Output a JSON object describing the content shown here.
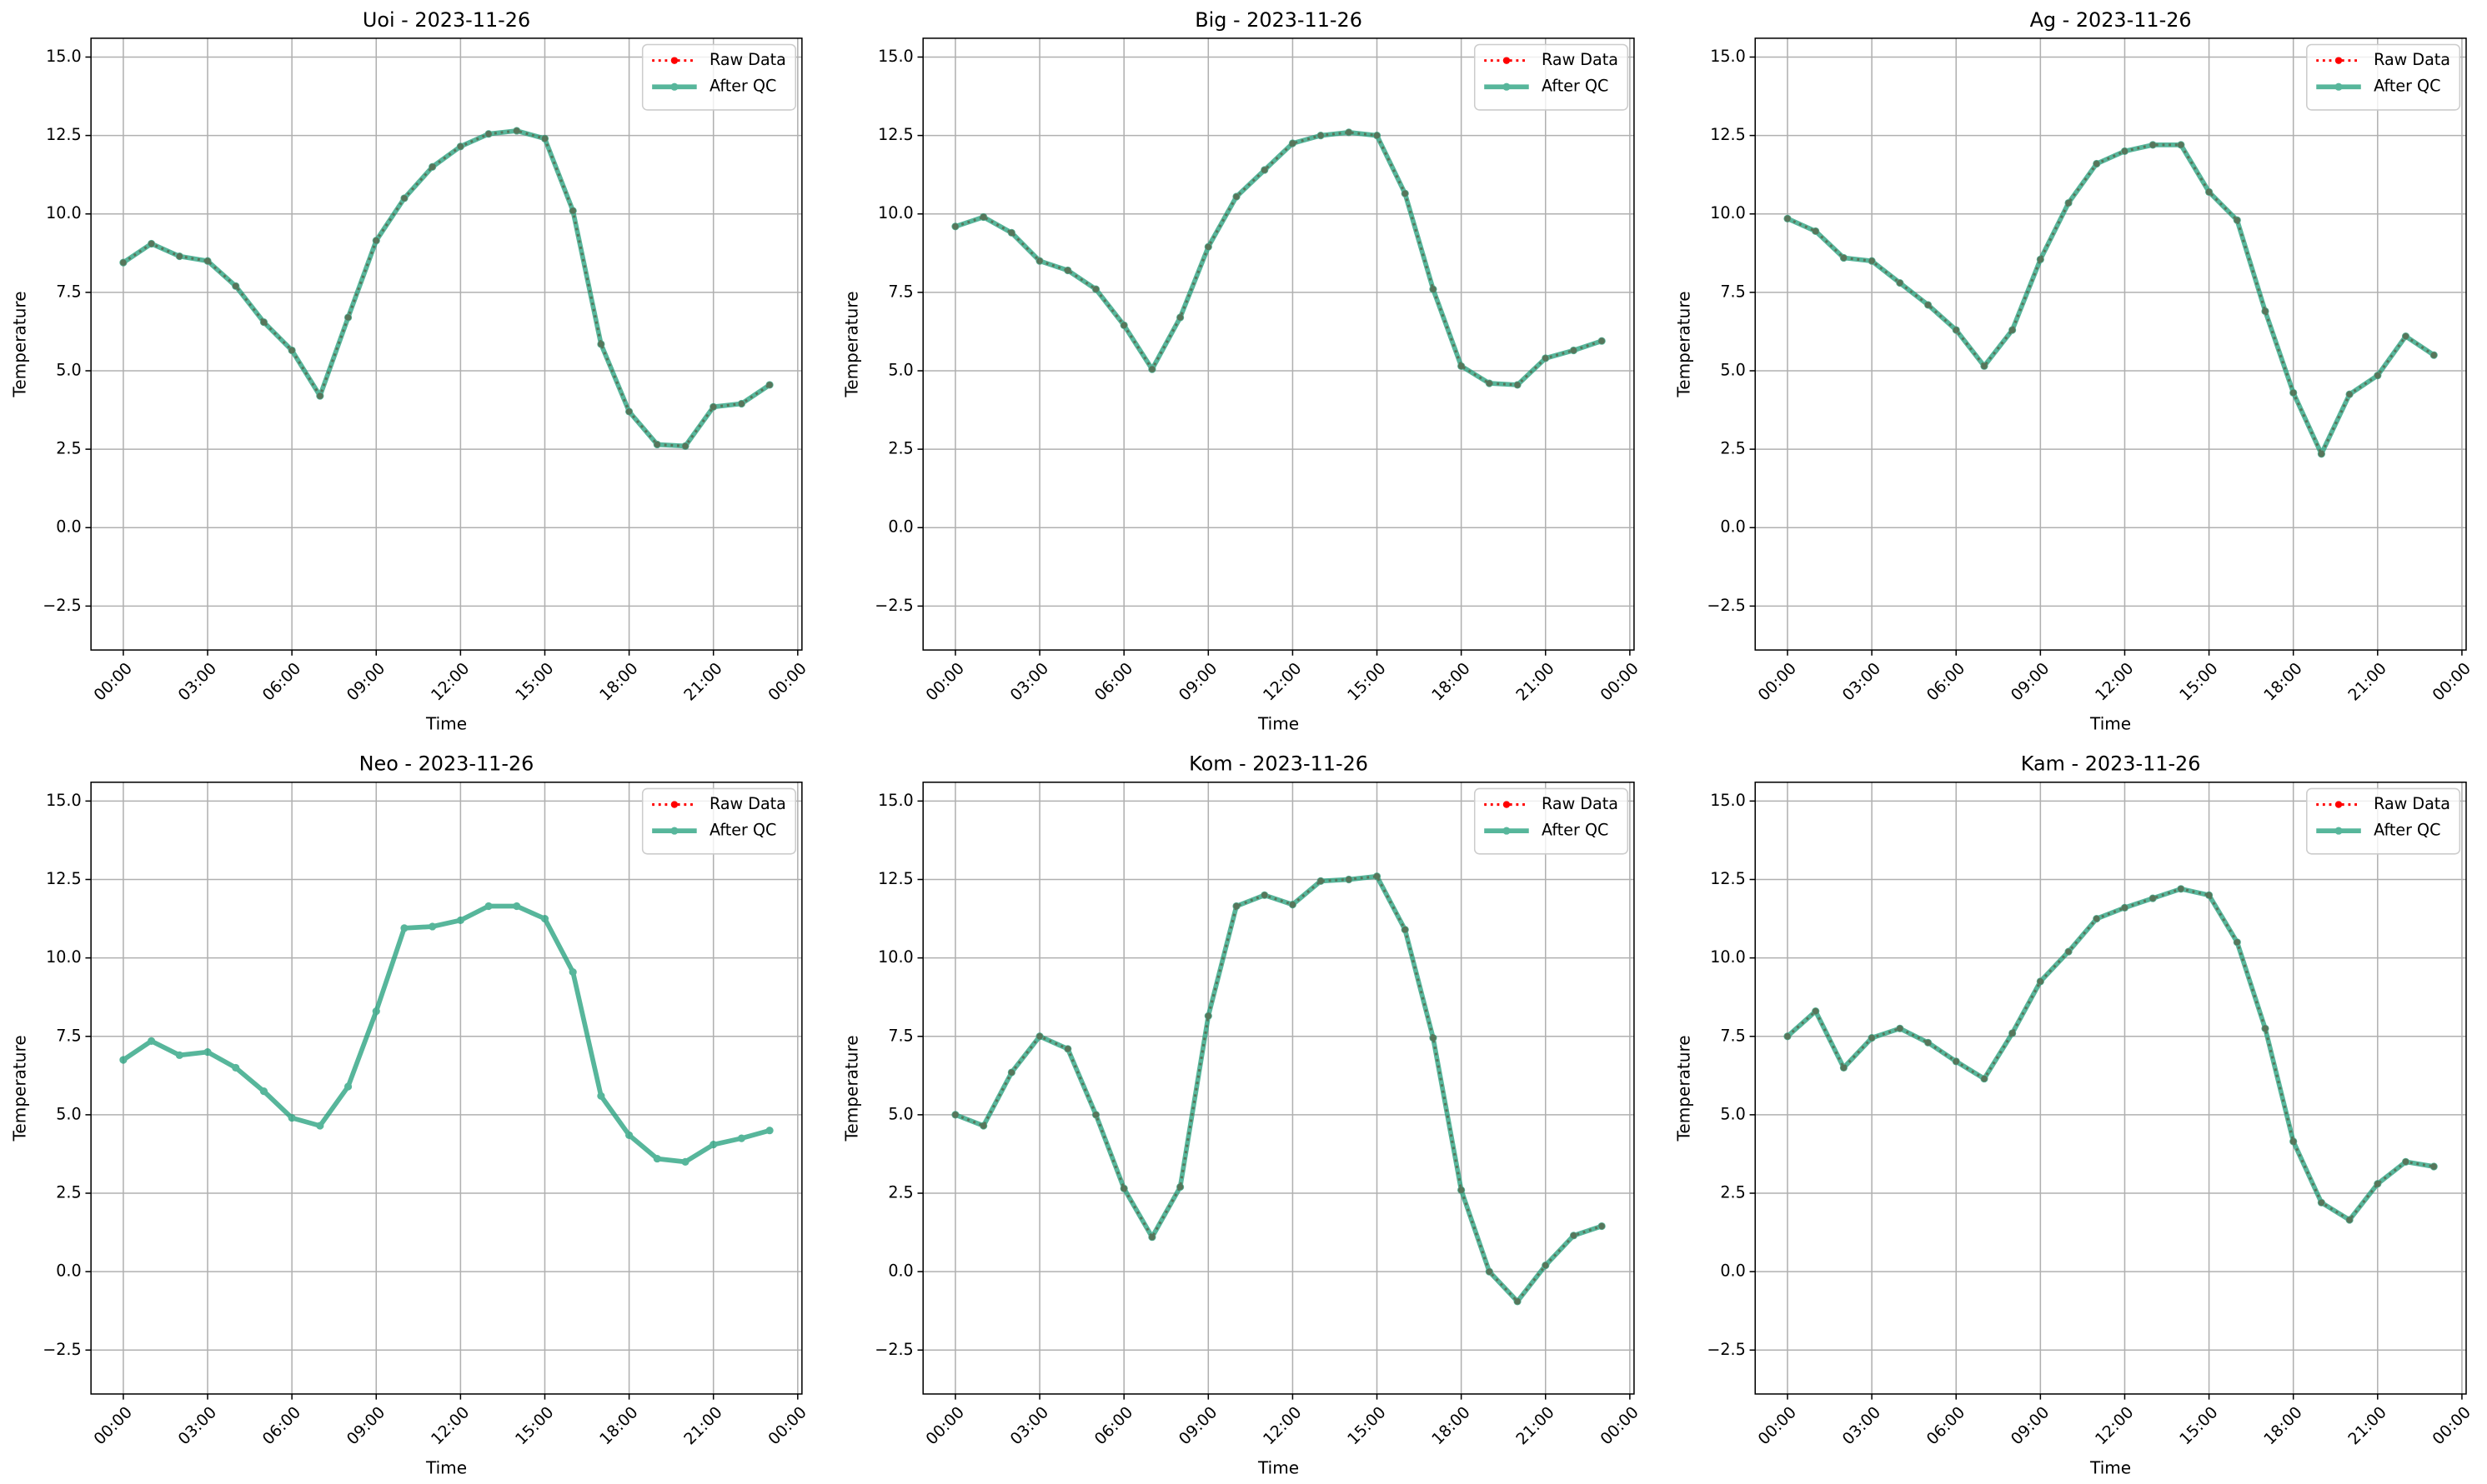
{
  "chart_data": [
    {
      "type": "line",
      "title": "Uoi - 2023-11-26",
      "xlabel": "Time",
      "ylabel": "Temperature",
      "x": [
        "00:00",
        "01:00",
        "02:00",
        "03:00",
        "04:00",
        "05:00",
        "06:00",
        "07:00",
        "08:00",
        "09:00",
        "10:00",
        "11:00",
        "12:00",
        "13:00",
        "14:00",
        "15:00",
        "16:00",
        "17:00",
        "18:00",
        "19:00",
        "20:00",
        "21:00",
        "22:00",
        "23:00"
      ],
      "xlim": [
        -1.15,
        24.15
      ],
      "xticks": [
        {
          "value": 0,
          "label": "00:00"
        },
        {
          "value": 3,
          "label": "03:00"
        },
        {
          "value": 6,
          "label": "06:00"
        },
        {
          "value": 9,
          "label": "09:00"
        },
        {
          "value": 12,
          "label": "12:00"
        },
        {
          "value": 15,
          "label": "15:00"
        },
        {
          "value": 18,
          "label": "18:00"
        },
        {
          "value": 21,
          "label": "21:00"
        },
        {
          "value": 24,
          "label": "00:00"
        }
      ],
      "ylim": [
        -3.9,
        15.6
      ],
      "yticks": [
        {
          "value": -2.5,
          "label": "−2.5"
        },
        {
          "value": 0,
          "label": "0.0"
        },
        {
          "value": 2.5,
          "label": "2.5"
        },
        {
          "value": 5,
          "label": "5.0"
        },
        {
          "value": 7.5,
          "label": "7.5"
        },
        {
          "value": 10,
          "label": "10.0"
        },
        {
          "value": 12.5,
          "label": "12.5"
        },
        {
          "value": 15,
          "label": "15.0"
        }
      ],
      "grid": true,
      "legend": "upper right",
      "series": [
        {
          "name": "Raw Data",
          "color": "#ff0000",
          "values": [
            8.45,
            9.05,
            8.65,
            8.5,
            7.7,
            6.55,
            5.65,
            4.2,
            6.7,
            9.15,
            10.5,
            11.5,
            12.15,
            12.55,
            12.65,
            12.4,
            10.1,
            5.85,
            3.7,
            2.65,
            2.6,
            3.85,
            3.95,
            4.55
          ]
        },
        {
          "name": "After QC",
          "color": "#1f9e7a",
          "values": [
            8.45,
            9.05,
            8.65,
            8.5,
            7.7,
            6.55,
            5.65,
            4.2,
            6.7,
            9.15,
            10.5,
            11.5,
            12.15,
            12.55,
            12.65,
            12.4,
            10.1,
            5.85,
            3.7,
            2.65,
            2.6,
            3.85,
            3.95,
            4.55
          ]
        }
      ]
    },
    {
      "type": "line",
      "title": "Big - 2023-11-26",
      "xlabel": "Time",
      "ylabel": "Temperature",
      "x": [
        "00:00",
        "01:00",
        "02:00",
        "03:00",
        "04:00",
        "05:00",
        "06:00",
        "07:00",
        "08:00",
        "09:00",
        "10:00",
        "11:00",
        "12:00",
        "13:00",
        "14:00",
        "15:00",
        "16:00",
        "17:00",
        "18:00",
        "19:00",
        "20:00",
        "21:00",
        "22:00",
        "23:00"
      ],
      "xlim": [
        -1.15,
        24.15
      ],
      "xticks": [
        {
          "value": 0,
          "label": "00:00"
        },
        {
          "value": 3,
          "label": "03:00"
        },
        {
          "value": 6,
          "label": "06:00"
        },
        {
          "value": 9,
          "label": "09:00"
        },
        {
          "value": 12,
          "label": "12:00"
        },
        {
          "value": 15,
          "label": "15:00"
        },
        {
          "value": 18,
          "label": "18:00"
        },
        {
          "value": 21,
          "label": "21:00"
        },
        {
          "value": 24,
          "label": "00:00"
        }
      ],
      "ylim": [
        -3.9,
        15.6
      ],
      "yticks": [
        {
          "value": -2.5,
          "label": "−2.5"
        },
        {
          "value": 0,
          "label": "0.0"
        },
        {
          "value": 2.5,
          "label": "2.5"
        },
        {
          "value": 5,
          "label": "5.0"
        },
        {
          "value": 7.5,
          "label": "7.5"
        },
        {
          "value": 10,
          "label": "10.0"
        },
        {
          "value": 12.5,
          "label": "12.5"
        },
        {
          "value": 15,
          "label": "15.0"
        }
      ],
      "grid": true,
      "legend": "upper right",
      "series": [
        {
          "name": "Raw Data",
          "color": "#ff0000",
          "values": [
            9.6,
            9.9,
            9.4,
            8.5,
            8.2,
            7.6,
            6.45,
            5.05,
            6.7,
            8.95,
            10.55,
            11.4,
            12.25,
            12.5,
            12.6,
            12.5,
            10.65,
            7.6,
            5.15,
            4.6,
            4.55,
            5.4,
            5.65,
            5.95
          ]
        },
        {
          "name": "After QC",
          "color": "#1f9e7a",
          "values": [
            9.6,
            9.9,
            9.4,
            8.5,
            8.2,
            7.6,
            6.45,
            5.05,
            6.7,
            8.95,
            10.55,
            11.4,
            12.25,
            12.5,
            12.6,
            12.5,
            10.65,
            7.6,
            5.15,
            4.6,
            4.55,
            5.4,
            5.65,
            5.95
          ]
        }
      ]
    },
    {
      "type": "line",
      "title": "Ag - 2023-11-26",
      "xlabel": "Time",
      "ylabel": "Temperature",
      "x": [
        "00:00",
        "01:00",
        "02:00",
        "03:00",
        "04:00",
        "05:00",
        "06:00",
        "07:00",
        "08:00",
        "09:00",
        "10:00",
        "11:00",
        "12:00",
        "13:00",
        "14:00",
        "15:00",
        "16:00",
        "17:00",
        "18:00",
        "19:00",
        "20:00",
        "21:00",
        "22:00",
        "23:00"
      ],
      "xlim": [
        -1.15,
        24.15
      ],
      "xticks": [
        {
          "value": 0,
          "label": "00:00"
        },
        {
          "value": 3,
          "label": "03:00"
        },
        {
          "value": 6,
          "label": "06:00"
        },
        {
          "value": 9,
          "label": "09:00"
        },
        {
          "value": 12,
          "label": "12:00"
        },
        {
          "value": 15,
          "label": "15:00"
        },
        {
          "value": 18,
          "label": "18:00"
        },
        {
          "value": 21,
          "label": "21:00"
        },
        {
          "value": 24,
          "label": "00:00"
        }
      ],
      "ylim": [
        -3.9,
        15.6
      ],
      "yticks": [
        {
          "value": -2.5,
          "label": "−2.5"
        },
        {
          "value": 0,
          "label": "0.0"
        },
        {
          "value": 2.5,
          "label": "2.5"
        },
        {
          "value": 5,
          "label": "5.0"
        },
        {
          "value": 7.5,
          "label": "7.5"
        },
        {
          "value": 10,
          "label": "10.0"
        },
        {
          "value": 12.5,
          "label": "12.5"
        },
        {
          "value": 15,
          "label": "15.0"
        }
      ],
      "grid": true,
      "legend": "upper right",
      "series": [
        {
          "name": "Raw Data",
          "color": "#ff0000",
          "values": [
            9.85,
            9.45,
            8.6,
            8.5,
            7.8,
            7.1,
            6.3,
            5.15,
            6.3,
            8.55,
            10.35,
            11.6,
            12.0,
            12.2,
            12.2,
            10.7,
            9.8,
            6.9,
            4.3,
            2.35,
            4.25,
            4.85,
            6.1,
            5.5
          ]
        },
        {
          "name": "After QC",
          "color": "#1f9e7a",
          "values": [
            9.85,
            9.45,
            8.6,
            8.5,
            7.8,
            7.1,
            6.3,
            5.15,
            6.3,
            8.55,
            10.35,
            11.6,
            12.0,
            12.2,
            12.2,
            10.7,
            9.8,
            6.9,
            4.3,
            2.35,
            4.25,
            4.85,
            6.1,
            5.5
          ]
        }
      ]
    },
    {
      "type": "line",
      "title": "Neo - 2023-11-26",
      "xlabel": "Time",
      "ylabel": "Temperature",
      "x": [
        "00:00",
        "01:00",
        "02:00",
        "03:00",
        "04:00",
        "05:00",
        "06:00",
        "07:00",
        "08:00",
        "09:00",
        "10:00",
        "11:00",
        "12:00",
        "13:00",
        "14:00",
        "15:00",
        "16:00",
        "17:00",
        "18:00",
        "19:00",
        "20:00",
        "21:00",
        "22:00",
        "23:00"
      ],
      "xlim": [
        -1.15,
        24.15
      ],
      "xticks": [
        {
          "value": 0,
          "label": "00:00"
        },
        {
          "value": 3,
          "label": "03:00"
        },
        {
          "value": 6,
          "label": "06:00"
        },
        {
          "value": 9,
          "label": "09:00"
        },
        {
          "value": 12,
          "label": "12:00"
        },
        {
          "value": 15,
          "label": "15:00"
        },
        {
          "value": 18,
          "label": "18:00"
        },
        {
          "value": 21,
          "label": "21:00"
        },
        {
          "value": 24,
          "label": "00:00"
        }
      ],
      "ylim": [
        -3.9,
        15.6
      ],
      "yticks": [
        {
          "value": -2.5,
          "label": "−2.5"
        },
        {
          "value": 0,
          "label": "0.0"
        },
        {
          "value": 2.5,
          "label": "2.5"
        },
        {
          "value": 5,
          "label": "5.0"
        },
        {
          "value": 7.5,
          "label": "7.5"
        },
        {
          "value": 10,
          "label": "10.0"
        },
        {
          "value": 12.5,
          "label": "12.5"
        },
        {
          "value": 15,
          "label": "15.0"
        }
      ],
      "grid": true,
      "legend": "upper right",
      "series": [
        {
          "name": "Raw Data",
          "color": "#ff0000",
          "values": [
            null,
            null,
            null,
            null,
            null,
            null,
            null,
            null,
            null,
            null,
            null,
            null,
            null,
            null,
            null,
            null,
            null,
            null,
            null,
            null,
            null,
            null,
            null,
            null
          ]
        },
        {
          "name": "After QC",
          "color": "#1f9e7a",
          "values": [
            6.75,
            7.35,
            6.9,
            7.0,
            6.5,
            5.75,
            4.9,
            4.65,
            5.9,
            8.3,
            10.95,
            11.0,
            11.2,
            11.65,
            11.65,
            11.25,
            9.55,
            5.6,
            4.35,
            3.6,
            3.5,
            4.05,
            4.25,
            4.5
          ]
        }
      ]
    },
    {
      "type": "line",
      "title": "Kom - 2023-11-26",
      "xlabel": "Time",
      "ylabel": "Temperature",
      "x": [
        "00:00",
        "01:00",
        "02:00",
        "03:00",
        "04:00",
        "05:00",
        "06:00",
        "07:00",
        "08:00",
        "09:00",
        "10:00",
        "11:00",
        "12:00",
        "13:00",
        "14:00",
        "15:00",
        "16:00",
        "17:00",
        "18:00",
        "19:00",
        "20:00",
        "21:00",
        "22:00",
        "23:00"
      ],
      "xlim": [
        -1.15,
        24.15
      ],
      "xticks": [
        {
          "value": 0,
          "label": "00:00"
        },
        {
          "value": 3,
          "label": "03:00"
        },
        {
          "value": 6,
          "label": "06:00"
        },
        {
          "value": 9,
          "label": "09:00"
        },
        {
          "value": 12,
          "label": "12:00"
        },
        {
          "value": 15,
          "label": "15:00"
        },
        {
          "value": 18,
          "label": "18:00"
        },
        {
          "value": 21,
          "label": "21:00"
        },
        {
          "value": 24,
          "label": "00:00"
        }
      ],
      "ylim": [
        -3.9,
        15.6
      ],
      "yticks": [
        {
          "value": -2.5,
          "label": "−2.5"
        },
        {
          "value": 0,
          "label": "0.0"
        },
        {
          "value": 2.5,
          "label": "2.5"
        },
        {
          "value": 5,
          "label": "5.0"
        },
        {
          "value": 7.5,
          "label": "7.5"
        },
        {
          "value": 10,
          "label": "10.0"
        },
        {
          "value": 12.5,
          "label": "12.5"
        },
        {
          "value": 15,
          "label": "15.0"
        }
      ],
      "grid": true,
      "legend": "upper right",
      "series": [
        {
          "name": "Raw Data",
          "color": "#ff0000",
          "values": [
            5.0,
            4.65,
            6.35,
            7.5,
            7.1,
            5.0,
            2.65,
            1.1,
            2.7,
            8.15,
            11.65,
            12.0,
            11.7,
            12.45,
            12.5,
            12.6,
            10.9,
            7.45,
            2.6,
            0.0,
            -0.95,
            0.2,
            1.15,
            1.45
          ]
        },
        {
          "name": "After QC",
          "color": "#1f9e7a",
          "values": [
            5.0,
            4.65,
            6.35,
            7.5,
            7.1,
            5.0,
            2.65,
            1.1,
            2.7,
            8.15,
            11.65,
            12.0,
            11.7,
            12.45,
            12.5,
            12.6,
            10.9,
            7.45,
            2.6,
            0.0,
            -0.95,
            0.2,
            1.15,
            1.45
          ]
        }
      ]
    },
    {
      "type": "line",
      "title": "Kam - 2023-11-26",
      "xlabel": "Time",
      "ylabel": "Temperature",
      "x": [
        "00:00",
        "01:00",
        "02:00",
        "03:00",
        "04:00",
        "05:00",
        "06:00",
        "07:00",
        "08:00",
        "09:00",
        "10:00",
        "11:00",
        "12:00",
        "13:00",
        "14:00",
        "15:00",
        "16:00",
        "17:00",
        "18:00",
        "19:00",
        "20:00",
        "21:00",
        "22:00",
        "23:00"
      ],
      "xlim": [
        -1.15,
        24.15
      ],
      "xticks": [
        {
          "value": 0,
          "label": "00:00"
        },
        {
          "value": 3,
          "label": "03:00"
        },
        {
          "value": 6,
          "label": "06:00"
        },
        {
          "value": 9,
          "label": "09:00"
        },
        {
          "value": 12,
          "label": "12:00"
        },
        {
          "value": 15,
          "label": "15:00"
        },
        {
          "value": 18,
          "label": "18:00"
        },
        {
          "value": 21,
          "label": "21:00"
        },
        {
          "value": 24,
          "label": "00:00"
        }
      ],
      "ylim": [
        -3.9,
        15.6
      ],
      "yticks": [
        {
          "value": -2.5,
          "label": "−2.5"
        },
        {
          "value": 0,
          "label": "0.0"
        },
        {
          "value": 2.5,
          "label": "2.5"
        },
        {
          "value": 5,
          "label": "5.0"
        },
        {
          "value": 7.5,
          "label": "7.5"
        },
        {
          "value": 10,
          "label": "10.0"
        },
        {
          "value": 12.5,
          "label": "12.5"
        },
        {
          "value": 15,
          "label": "15.0"
        }
      ],
      "grid": true,
      "legend": "upper right",
      "series": [
        {
          "name": "Raw Data",
          "color": "#ff0000",
          "values": [
            7.5,
            8.3,
            6.5,
            7.45,
            7.75,
            7.3,
            6.7,
            6.15,
            7.6,
            9.25,
            10.2,
            11.25,
            11.6,
            11.9,
            12.2,
            12.0,
            10.5,
            7.75,
            4.15,
            2.2,
            1.65,
            2.8,
            3.5,
            3.35
          ]
        },
        {
          "name": "After QC",
          "color": "#1f9e7a",
          "values": [
            7.5,
            8.3,
            6.5,
            7.45,
            7.75,
            7.3,
            6.7,
            6.15,
            7.6,
            9.25,
            10.2,
            11.25,
            11.6,
            11.9,
            12.2,
            12.0,
            10.5,
            7.75,
            4.15,
            2.2,
            1.65,
            2.8,
            3.5,
            3.35
          ]
        }
      ]
    }
  ]
}
